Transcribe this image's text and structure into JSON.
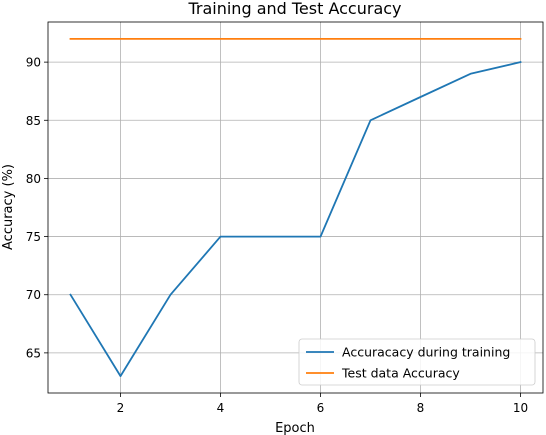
{
  "chart_data": {
    "type": "line",
    "title": "Training and Test Accuracy",
    "xlabel": "Epoch",
    "ylabel": "Accuracy (%)",
    "xlim": [
      0.55,
      10.45
    ],
    "ylim": [
      61.55,
      93.45
    ],
    "xticks": [
      2,
      4,
      6,
      8,
      10
    ],
    "yticks": [
      65,
      70,
      75,
      80,
      85,
      90
    ],
    "grid": true,
    "legend_position": "lower-right",
    "x": [
      1,
      2,
      3,
      4,
      5,
      6,
      7,
      8,
      9,
      10
    ],
    "series": [
      {
        "name": "Accuracacy during training",
        "color": "#1f77b4",
        "values": [
          70,
          63,
          70,
          75,
          75,
          75,
          85,
          87,
          89,
          90
        ]
      },
      {
        "name": "Test data Accuracy",
        "color": "#ff7f0e",
        "values": [
          92,
          92,
          92,
          92,
          92,
          92,
          92,
          92,
          92,
          92
        ]
      }
    ]
  }
}
